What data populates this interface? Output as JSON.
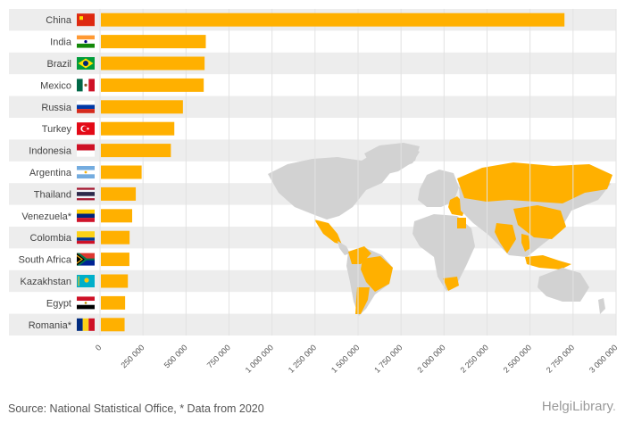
{
  "chart_data": {
    "type": "bar",
    "orientation": "horizontal",
    "categories": [
      "China",
      "India",
      "Brazil",
      "Mexico",
      "Russia",
      "Turkey",
      "Indonesia",
      "Argentina",
      "Thailand",
      "Venezuela*",
      "Colombia",
      "South Africa",
      "Kazakhstan",
      "Egypt",
      "Romania*"
    ],
    "values": [
      2700000,
      615000,
      608000,
      603000,
      482000,
      432000,
      412000,
      242000,
      208000,
      187000,
      172000,
      171000,
      162000,
      146000,
      143000
    ],
    "xlim": [
      0,
      3000000
    ],
    "xticks": [
      "0",
      "250 000",
      "500 000",
      "750 000",
      "1 000 000",
      "1 250 000",
      "1 500 000",
      "1 750 000",
      "2 000 000",
      "2 250 000",
      "2 500 000",
      "2 750 000",
      "3 000 000"
    ],
    "title": "",
    "xlabel": "",
    "ylabel": "",
    "grid": true,
    "colors": {
      "bar": "#FFB000",
      "band": "#EDEDED",
      "grid": "#E2E2E2",
      "map_land": "#D2D2D2",
      "map_highlight": "#FFB000"
    },
    "flag_icons": [
      "china-flag-icon",
      "india-flag-icon",
      "brazil-flag-icon",
      "mexico-flag-icon",
      "russia-flag-icon",
      "turkey-flag-icon",
      "indonesia-flag-icon",
      "argentina-flag-icon",
      "thailand-flag-icon",
      "venezuela-flag-icon",
      "colombia-flag-icon",
      "south-africa-flag-icon",
      "kazakhstan-flag-icon",
      "egypt-flag-icon",
      "romania-flag-icon"
    ]
  },
  "footer": {
    "source": "Source: National Statistical Office, * Data from 2020",
    "logo_main": "HelgiLibrary",
    "logo_suffix": "."
  }
}
